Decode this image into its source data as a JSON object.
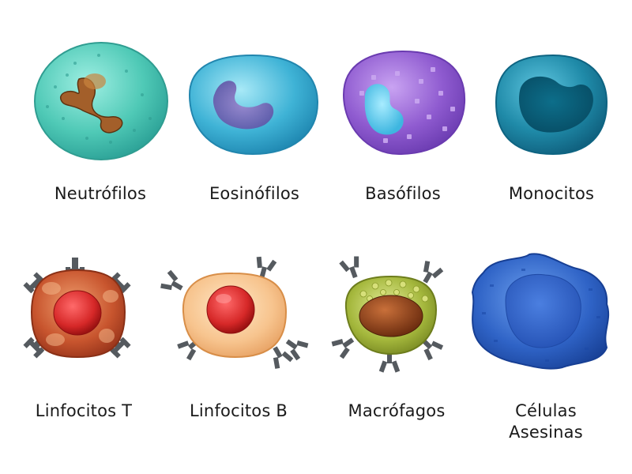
{
  "cells": [
    {
      "label": "Neutrófilos"
    },
    {
      "label": "Eosinófilos"
    },
    {
      "label": "Basófilos"
    },
    {
      "label": "Monocitos"
    },
    {
      "label": "Linfocitos T"
    },
    {
      "label": "Linfocitos B"
    },
    {
      "label": "Macrófagos"
    },
    {
      "label": "Células\nAsesinas"
    }
  ],
  "colors": {
    "neutrophil": "#4fc9b6",
    "eosinophil": "#3fb3d6",
    "basophil": "#8f5bd0",
    "monocyte": "#1f8aa8",
    "t_cell": "#c8552e",
    "b_cell": "#f2b27c",
    "macrophage": "#a4b73c",
    "nk_cell": "#2f63c6",
    "receptor": "#555a5f"
  }
}
